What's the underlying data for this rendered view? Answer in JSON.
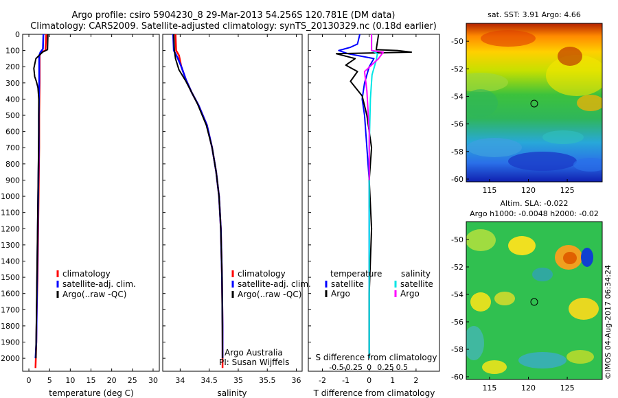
{
  "header": {
    "line1": "Argo profile: csiro 5904230_8 29-Mar-2013 54.256S 120.781E (DM data)",
    "line2": "Climatology: CARS2009. Satellite-adjusted climatology: synTS_20130329.nc (0.18d earlier)"
  },
  "colors": {
    "climatology": "#ff0000",
    "satellite": "#0000ff",
    "argo": "#000000",
    "argo_salinity_diff": "#ff00ff",
    "satellite_salinity_diff": "#00e5e5"
  },
  "chart_data": [
    {
      "type": "line",
      "id": "temperature",
      "xlabel": "temperature (deg C)",
      "xlim": [
        -1.5,
        31.5
      ],
      "ylim": [
        2080,
        0
      ],
      "xticks": [
        0,
        5,
        10,
        15,
        20,
        25,
        30
      ],
      "yticks": [
        0,
        100,
        200,
        300,
        400,
        500,
        600,
        700,
        800,
        900,
        1000,
        1100,
        1200,
        1300,
        1400,
        1500,
        1600,
        1700,
        1800,
        1900,
        2000
      ],
      "legend": [
        "climatology",
        "satellite-adj. clim.",
        "Argo(..raw -QC)"
      ],
      "series": [
        {
          "name": "climatology",
          "color": "#ff0000",
          "x": [
            4.2,
            4.0,
            3.0,
            2.6,
            2.6,
            2.5,
            2.5,
            2.4,
            2.3,
            2.2,
            2.1,
            1.9,
            1.8,
            1.6
          ],
          "y": [
            0,
            100,
            110,
            130,
            300,
            500,
            700,
            900,
            1100,
            1300,
            1500,
            1700,
            1900,
            2060
          ]
        },
        {
          "name": "satellite-adj. clim.",
          "color": "#0000ff",
          "x": [
            3.5,
            3.4,
            2.8,
            2.5,
            2.5,
            2.4,
            2.4,
            2.3,
            2.2,
            2.1,
            2.0,
            1.9,
            1.8,
            1.6
          ],
          "y": [
            0,
            90,
            110,
            130,
            300,
            500,
            700,
            900,
            1100,
            1300,
            1500,
            1700,
            1900,
            2000
          ]
        },
        {
          "name": "Argo(..raw -QC)",
          "color": "#000000",
          "x": [
            4.6,
            4.5,
            3.3,
            1.7,
            1.2,
            1.4,
            1.8,
            2.2,
            2.4,
            2.4,
            2.3,
            2.2,
            2.1,
            2.0,
            1.9,
            1.8,
            1.7
          ],
          "y": [
            0,
            95,
            110,
            150,
            210,
            260,
            290,
            330,
            400,
            600,
            800,
            1000,
            1200,
            1400,
            1600,
            1800,
            2000
          ]
        }
      ]
    },
    {
      "type": "line",
      "id": "salinity",
      "xlabel": "salinity",
      "xlim": [
        33.7,
        36.1
      ],
      "ylim": [
        2080,
        0
      ],
      "xticks": [
        34,
        34.5,
        35,
        35.5,
        36
      ],
      "legend": [
        "climatology",
        "satellite-adj. clim.",
        "Argo(..raw -QC)"
      ],
      "annotation": [
        "Argo Australia",
        "PI: Susan Wijffels"
      ],
      "series": [
        {
          "name": "climatology",
          "color": "#ff0000",
          "x": [
            33.92,
            33.93,
            33.98,
            34.02,
            34.1,
            34.2,
            34.32,
            34.46,
            34.55,
            34.62,
            34.67,
            34.7,
            34.72,
            34.73,
            34.73
          ],
          "y": [
            0,
            100,
            130,
            200,
            280,
            360,
            440,
            560,
            700,
            850,
            1000,
            1200,
            1500,
            1800,
            2060
          ]
        },
        {
          "name": "satellite-adj. clim.",
          "color": "#0000ff",
          "x": [
            33.88,
            33.89,
            33.95,
            34.02,
            34.1,
            34.2,
            34.32,
            34.46,
            34.55,
            34.62,
            34.67,
            34.7,
            34.72,
            34.73,
            34.73
          ],
          "y": [
            0,
            100,
            140,
            200,
            280,
            360,
            440,
            560,
            700,
            850,
            1000,
            1200,
            1500,
            1800,
            2000
          ]
        },
        {
          "name": "Argo(..raw -QC)",
          "color": "#000000",
          "x": [
            33.89,
            33.9,
            33.92,
            33.98,
            34.1,
            34.2,
            34.3,
            34.45,
            34.55,
            34.62,
            34.67,
            34.7,
            34.72,
            34.73
          ],
          "y": [
            0,
            100,
            150,
            220,
            290,
            360,
            430,
            560,
            700,
            850,
            1000,
            1200,
            1500,
            2000
          ]
        }
      ]
    },
    {
      "type": "line",
      "id": "differences",
      "xlabel": "T difference from climatology",
      "top_label": "S difference from climatology",
      "xlim": [
        -2.6,
        3.0
      ],
      "ylim": [
        2080,
        0
      ],
      "xticks": [
        -2,
        -1,
        0,
        1,
        2
      ],
      "sticks": [
        -0.5,
        -0.25,
        0,
        0.25,
        0.5
      ],
      "stick_labels": [
        "-0.5",
        "-0.25",
        "0",
        "0.25",
        "0.5"
      ],
      "legend_headers": [
        "temperature",
        "salinity"
      ],
      "legend": [
        "satellite",
        "Argo",
        "satellite",
        "Argo"
      ],
      "series": [
        {
          "name": "satellite",
          "group": "temperature",
          "color": "#0000ff",
          "x": [
            -0.4,
            -0.5,
            -0.8,
            -1.3,
            -0.9,
            0.2,
            0.0,
            -0.2,
            -0.3,
            -0.2,
            -0.1,
            0.0,
            0.0,
            0.0
          ],
          "y": [
            0,
            60,
            80,
            100,
            120,
            150,
            200,
            300,
            400,
            500,
            700,
            900,
            1400,
            2000
          ]
        },
        {
          "name": "Argo",
          "group": "temperature",
          "color": "#000000",
          "x": [
            0.4,
            0.3,
            1.2,
            1.8,
            -1.4,
            -0.6,
            -1.0,
            -0.5,
            -0.8,
            -0.3,
            -0.1,
            0.1,
            0.0,
            0.1,
            0.0,
            0.0
          ],
          "y": [
            0,
            95,
            100,
            110,
            120,
            150,
            190,
            230,
            290,
            380,
            500,
            700,
            900,
            1200,
            1600,
            2000
          ]
        },
        {
          "name": "satellite",
          "group": "salinity",
          "color": "#00e5e5",
          "x": [
            0.1,
            0.1,
            0.35,
            0.3,
            0.12,
            0.05,
            0.0,
            0.0,
            0.0
          ],
          "y": [
            0,
            100,
            120,
            160,
            250,
            400,
            700,
            1300,
            2000
          ]
        },
        {
          "name": "Argo",
          "group": "salinity",
          "color": "#ff00ff",
          "x": [
            0.1,
            0.1,
            0.6,
            0.4,
            -0.2,
            -0.1,
            0.0,
            0.0
          ],
          "y": [
            0,
            100,
            110,
            150,
            230,
            350,
            600,
            900
          ]
        }
      ]
    }
  ],
  "maps": [
    {
      "title": "sat. SST: 3.91 Argo: 4.66",
      "xticks": [
        115,
        120,
        125
      ],
      "yticks": [
        -50,
        -52,
        -54,
        -56,
        -58,
        -60
      ]
    },
    {
      "title1": "Altim. SLA: -0.022",
      "title2": "Argo h1000: -0.0048 h2000: -0.02",
      "xticks": [
        115,
        120,
        125
      ],
      "yticks": [
        -50,
        -52,
        -54,
        -56,
        -58,
        -60
      ]
    }
  ],
  "footer": {
    "stamp": "©IMOS 04-Aug-2017 06:34:24"
  }
}
